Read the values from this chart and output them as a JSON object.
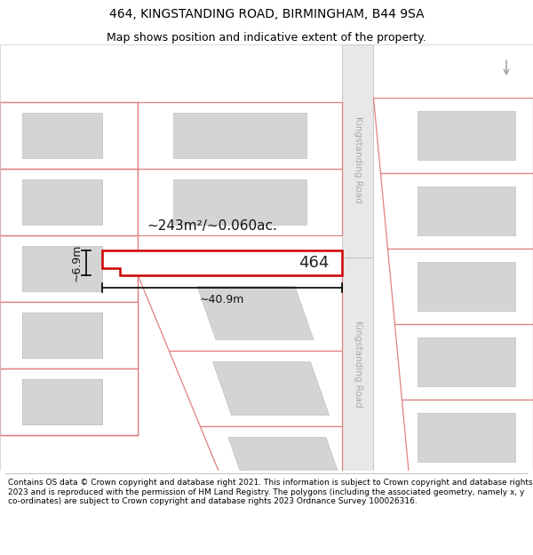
{
  "title_line1": "464, KINGSTANDING ROAD, BIRMINGHAM, B44 9SA",
  "title_line2": "Map shows position and indicative extent of the property.",
  "footer_text": "Contains OS data © Crown copyright and database right 2021. This information is subject to Crown copyright and database rights 2023 and is reproduced with the permission of HM Land Registry. The polygons (including the associated geometry, namely x, y co-ordinates) are subject to Crown copyright and database rights 2023 Ordnance Survey 100026316.",
  "map_bg": "#ffffff",
  "road_fill": "#e8e8e8",
  "road_edge": "#cccccc",
  "plot_outline_color": "#e08080",
  "highlight_outline_color": "#cc0000",
  "highlight_fill_color": "#ffffff",
  "building_fill_color": "#d4d4d4",
  "building_outline_color": "#c0c0c0",
  "area_label": "~243m²/~0.060ac.",
  "width_label": "~40.9m",
  "height_label": "~6.9m",
  "number_label": "464",
  "road_label_upper": "Kingstanding Road",
  "road_label_lower": "Kingstanding Road",
  "title_fontsize": 10,
  "subtitle_fontsize": 9,
  "footer_fontsize": 6.5
}
